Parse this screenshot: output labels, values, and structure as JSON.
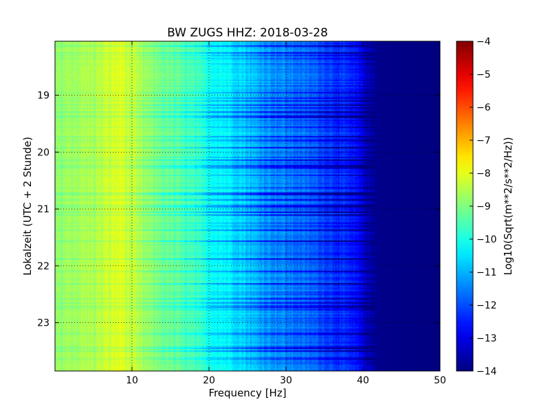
{
  "chart_data": {
    "type": "heatmap",
    "title": "BW ZUGS HHZ: 2018-03-28",
    "xlabel": "Frequency [Hz]",
    "ylabel": "Lokalzeit (UTC + 2 Stunde)",
    "xlim": [
      0,
      50
    ],
    "ylim": [
      18.05,
      23.85
    ],
    "y_inverted": true,
    "xticks": [
      10,
      20,
      30,
      40,
      50
    ],
    "yticks": [
      19,
      20,
      21,
      22,
      23
    ],
    "grid": true,
    "colormap": "jet",
    "colorbar": {
      "label": "Log10(Sqrt(m**2/s**2/Hz))",
      "range": [
        -14,
        -4
      ],
      "ticks": [
        -4,
        -5,
        -6,
        -7,
        -8,
        -9,
        -10,
        -11,
        -12,
        -13,
        -14
      ]
    },
    "spectrum_profile": {
      "frequency_hz": [
        0,
        2,
        5,
        7,
        8.5,
        10,
        12,
        15,
        18,
        20,
        22,
        24,
        26,
        28,
        30,
        32,
        34,
        36,
        38,
        39,
        40,
        41,
        42,
        50
      ],
      "log10_amplitude": [
        -8.8,
        -8.6,
        -8.5,
        -8.2,
        -8.0,
        -8.4,
        -8.8,
        -9.2,
        -9.6,
        -10.0,
        -10.2,
        -10.5,
        -10.9,
        -11.2,
        -11.4,
        -11.6,
        -11.8,
        -12.1,
        -12.4,
        -12.6,
        -13.0,
        -13.6,
        -13.9,
        -14.0
      ]
    }
  }
}
